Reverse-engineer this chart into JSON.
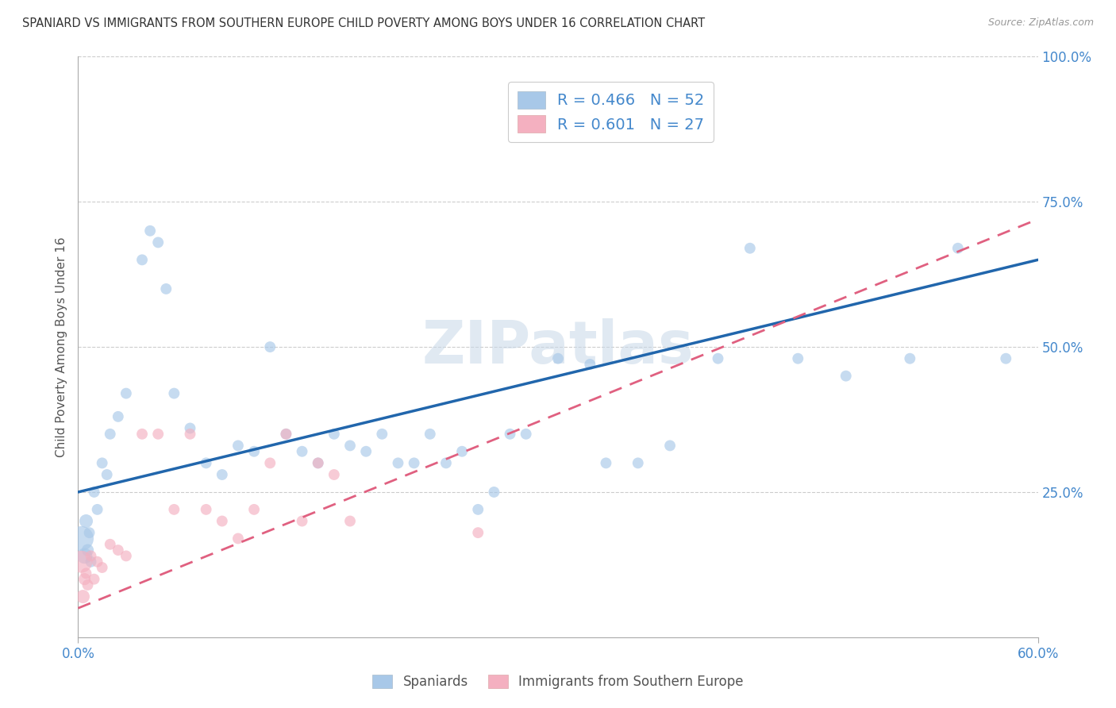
{
  "title": "SPANIARD VS IMMIGRANTS FROM SOUTHERN EUROPE CHILD POVERTY AMONG BOYS UNDER 16 CORRELATION CHART",
  "source": "Source: ZipAtlas.com",
  "ylabel": "Child Poverty Among Boys Under 16",
  "legend_label1": "Spaniards",
  "legend_label2": "Immigrants from Southern Europe",
  "r1": "0.466",
  "n1": "52",
  "r2": "0.601",
  "n2": "27",
  "color_blue": "#a8c8e8",
  "color_blue_line": "#2166ac",
  "color_pink": "#f4b0c0",
  "color_pink_line": "#e06080",
  "background": "#ffffff",
  "watermark_color": "#c8d8e8",
  "axis_label_color": "#4488cc",
  "grid_color": "#cccccc",
  "blue_scatter_x": [
    0.2,
    0.4,
    0.5,
    0.6,
    0.7,
    0.8,
    1.0,
    1.2,
    1.5,
    1.8,
    2.0,
    2.5,
    3.0,
    4.0,
    4.5,
    5.0,
    5.5,
    6.0,
    7.0,
    8.0,
    9.0,
    10.0,
    11.0,
    12.0,
    13.0,
    14.0,
    15.0,
    16.0,
    17.0,
    18.0,
    19.0,
    20.0,
    21.0,
    22.0,
    23.0,
    24.0,
    25.0,
    26.0,
    27.0,
    28.0,
    30.0,
    32.0,
    33.0,
    35.0,
    37.0,
    40.0,
    42.0,
    45.0,
    48.0,
    52.0,
    55.0,
    58.0
  ],
  "blue_scatter_y": [
    17,
    14,
    20,
    15,
    18,
    13,
    25,
    22,
    30,
    28,
    35,
    38,
    42,
    65,
    70,
    68,
    60,
    42,
    36,
    30,
    28,
    33,
    32,
    50,
    35,
    32,
    30,
    35,
    33,
    32,
    35,
    30,
    30,
    35,
    30,
    32,
    22,
    25,
    35,
    35,
    48,
    47,
    30,
    30,
    33,
    48,
    67,
    48,
    45,
    48,
    67,
    48
  ],
  "blue_scatter_sizes": [
    500,
    200,
    150,
    120,
    100,
    100,
    100,
    100,
    100,
    100,
    100,
    100,
    100,
    100,
    100,
    100,
    100,
    100,
    100,
    100,
    100,
    100,
    100,
    100,
    100,
    100,
    100,
    100,
    100,
    100,
    100,
    100,
    100,
    100,
    100,
    100,
    100,
    100,
    100,
    100,
    100,
    100,
    100,
    100,
    100,
    100,
    100,
    100,
    100,
    100,
    100,
    100
  ],
  "pink_scatter_x": [
    0.2,
    0.3,
    0.4,
    0.5,
    0.6,
    0.8,
    1.0,
    1.2,
    1.5,
    2.0,
    2.5,
    3.0,
    4.0,
    5.0,
    6.0,
    7.0,
    8.0,
    9.0,
    10.0,
    11.0,
    12.0,
    13.0,
    14.0,
    15.0,
    16.0,
    17.0,
    25.0
  ],
  "pink_scatter_y": [
    13,
    7,
    10,
    11,
    9,
    14,
    10,
    13,
    12,
    16,
    15,
    14,
    35,
    35,
    22,
    35,
    22,
    20,
    17,
    22,
    30,
    35,
    20,
    30,
    28,
    20,
    18
  ],
  "pink_scatter_sizes": [
    400,
    150,
    120,
    100,
    100,
    100,
    100,
    100,
    100,
    100,
    100,
    100,
    100,
    100,
    100,
    100,
    100,
    100,
    100,
    100,
    100,
    100,
    100,
    100,
    100,
    100,
    100
  ],
  "blue_line_x0": 0,
  "blue_line_y0": 25,
  "blue_line_x1": 60,
  "blue_line_y1": 65,
  "pink_line_x0": 0,
  "pink_line_y0": 5,
  "pink_line_x1": 60,
  "pink_line_y1": 72,
  "xlim": [
    0,
    60
  ],
  "ylim": [
    0,
    100
  ],
  "yticks": [
    25,
    50,
    75,
    100
  ],
  "ytick_labels": [
    "25.0%",
    "50.0%",
    "75.0%",
    "100.0%"
  ],
  "xtick_labels": [
    "0.0%",
    "60.0%"
  ],
  "xticks": [
    0,
    60
  ]
}
